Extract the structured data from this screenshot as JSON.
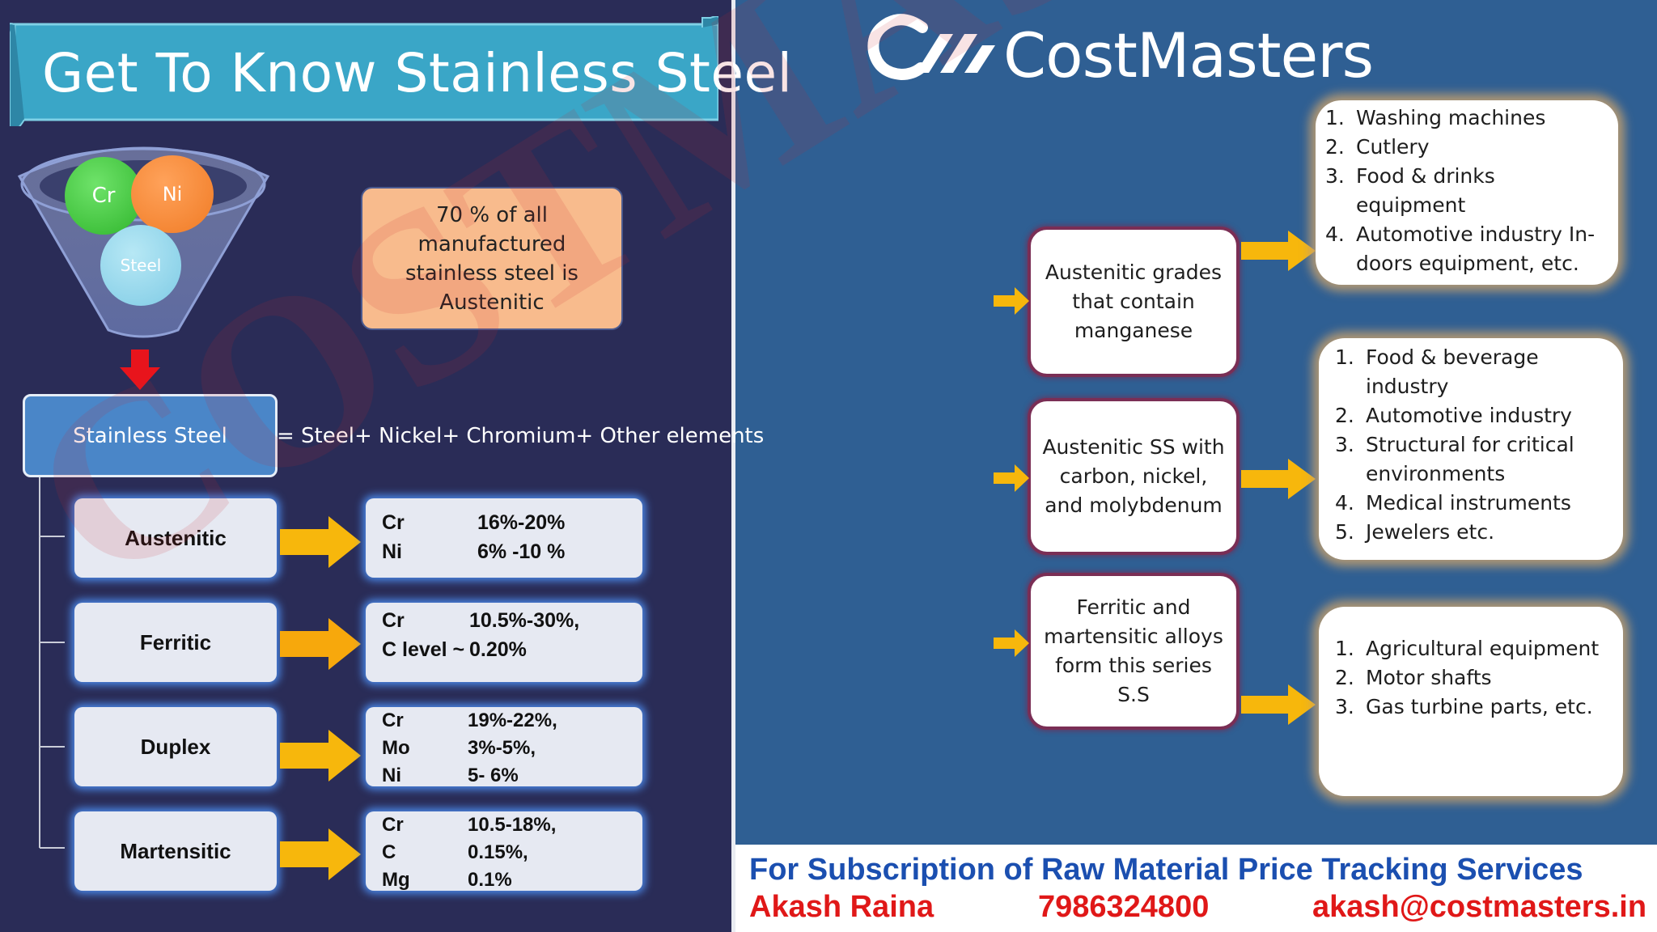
{
  "title": "Get To Know Stainless Steel",
  "colors": {
    "left_background": "#2a2c57",
    "right_background": "#2f5f93",
    "banner": "#3aa6c7",
    "note_box": "#f8bb8d",
    "arrow_yellow": "#f7b70c",
    "arrow_red": "#e8141c",
    "footer_blue": "#1b4fb0",
    "footer_red": "#e01818"
  },
  "funnel": {
    "circles": [
      "Cr",
      "Ni",
      "Steel"
    ]
  },
  "note": "70 % of all manufactured stainless steel is Austenitic",
  "stainless_steel": {
    "label": "Stainless Steel",
    "equation": "=  Steel+ Nickel+ Chromium+ Other elements"
  },
  "types": [
    {
      "name": "Austenitic",
      "composition": [
        {
          "element": "Cr",
          "value": "16%-20%"
        },
        {
          "element": "Ni",
          "value": "6% -10 %"
        }
      ]
    },
    {
      "name": "Ferritic",
      "composition": [
        {
          "element": "Cr",
          "value": "10.5%-30%,"
        },
        {
          "element": "C level ~",
          "value": "0.20%"
        }
      ]
    },
    {
      "name": "Duplex",
      "composition": [
        {
          "element": "Cr",
          "value": "19%-22%,"
        },
        {
          "element": "Mo",
          "value": "3%-5%,"
        },
        {
          "element": "Ni",
          "value": "5- 6%"
        }
      ]
    },
    {
      "name": "Martensitic",
      "composition": [
        {
          "element": "Cr",
          "value": "10.5-18%,"
        },
        {
          "element": "C",
          "value": "0.15%,"
        },
        {
          "element": "Mg",
          "value": "0.1%"
        }
      ]
    }
  ],
  "logo": {
    "text": "CostMasters",
    "icon": "costmasters-logo-icon"
  },
  "grades": [
    {
      "description": "Austenitic grades that contain manganese",
      "applications": [
        "Washing machines",
        "Cutlery",
        "Food & drinks equipment",
        "Automotive industry In-doors equipment, etc."
      ]
    },
    {
      "description": "Austenitic SS with carbon, nickel, and molybdenum",
      "applications": [
        "Food & beverage industry",
        "Automotive industry",
        "Structural for critical environments",
        "Medical instruments",
        "Jewelers etc."
      ]
    },
    {
      "description": "Ferritic and martensitic alloys form this series S.S",
      "applications": [
        "Agricultural equipment",
        "Motor shafts",
        "Gas turbine parts, etc."
      ]
    }
  ],
  "watermark": "COSTMASTERS",
  "footer": {
    "subscription": "For Subscription of Raw Material Price Tracking Services",
    "name": "Akash Raina",
    "phone": "7986324800",
    "email": "akash@costmasters.in"
  }
}
